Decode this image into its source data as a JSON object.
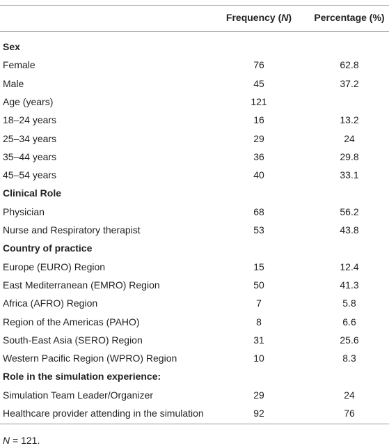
{
  "header": [
    {
      "text": "Frequency (",
      "italic": "N",
      "tail": ")"
    },
    {
      "text": "Percentage (%)"
    }
  ],
  "rows": [
    {
      "section": "Sex"
    },
    {
      "label": "Female",
      "n": 76,
      "pct": 62.8
    },
    {
      "label": "Male",
      "n": 45,
      "pct": 37.2
    },
    {
      "label": "Age (years)",
      "n": 121
    },
    {
      "label": "18–24 years",
      "n": 16,
      "pct": 13.2
    },
    {
      "label": "25–34 years",
      "n": 29,
      "pct": 24
    },
    {
      "label": "35–44 years",
      "n": 36,
      "pct": 29.8
    },
    {
      "label": "45–54 years",
      "n": 40,
      "pct": 33.1
    },
    {
      "section": "Clinical Role"
    },
    {
      "label": "Physician",
      "n": 68,
      "pct": 56.2
    },
    {
      "label": "Nurse and Respiratory therapist",
      "n": 53,
      "pct": 43.8
    },
    {
      "section": "Country of practice"
    },
    {
      "label": "Europe (EURO) Region",
      "n": 15,
      "pct": 12.4
    },
    {
      "label": "East Mediterranean (EMRO) Region",
      "n": 50,
      "pct": 41.3
    },
    {
      "label": "Africa (AFRO) Region",
      "n": 7,
      "pct": 5.8
    },
    {
      "label": "Region of the Americas (PAHO)",
      "n": 8,
      "pct": 6.6
    },
    {
      "label": "South-East Asia (SERO) Region",
      "n": 31,
      "pct": 25.6
    },
    {
      "label": "Western Pacific Region (WPRO) Region",
      "n": 10,
      "pct": 8.3
    },
    {
      "section": "Role in the simulation experience:"
    },
    {
      "label": "Simulation Team Leader/Organizer",
      "n": 29,
      "pct": 24
    },
    {
      "label": "Healthcare provider attending in the simulation",
      "n": 92,
      "pct": 76
    }
  ],
  "footnote": {
    "italic": "N",
    "text": " = 121."
  }
}
